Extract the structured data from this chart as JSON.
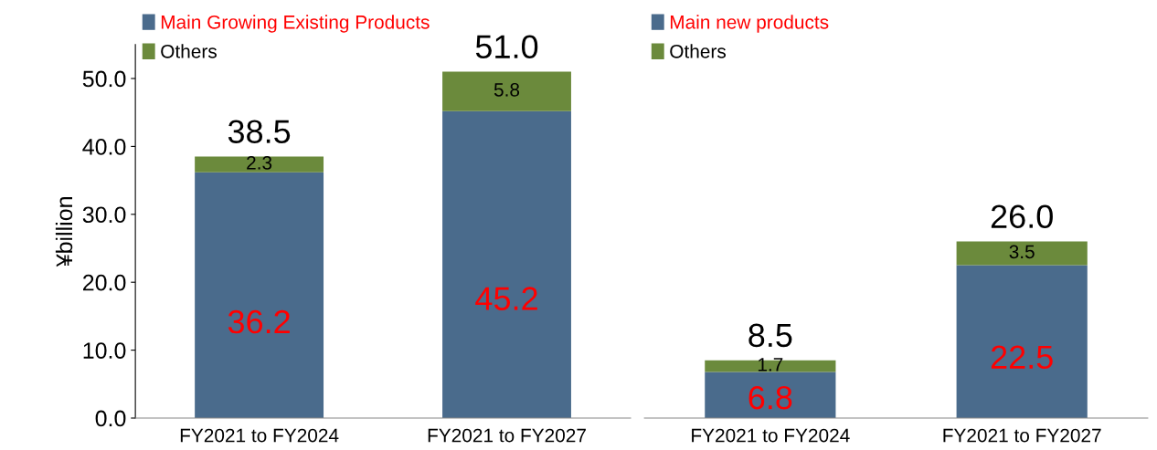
{
  "chart_data": [
    {
      "type": "bar",
      "stacked": true,
      "ylabel": "¥billion",
      "categories": [
        "FY2021 to FY2024",
        "FY2021 to FY2027"
      ],
      "series": [
        {
          "name": "Main Growing Existing Products",
          "color": "#4a6b8c",
          "values": [
            36.2,
            45.2
          ]
        },
        {
          "name": "Others",
          "color": "#6b8a3c",
          "values": [
            2.3,
            5.8
          ]
        }
      ],
      "data_labels": true,
      "totals": [
        "38.5",
        "51.0"
      ],
      "ylim": [
        0,
        55
      ],
      "yticks": [
        {
          "value": 0,
          "label": "0.0"
        },
        {
          "value": 10,
          "label": "10.0"
        },
        {
          "value": 20,
          "label": "20.0"
        },
        {
          "value": 30,
          "label": "30.0"
        },
        {
          "value": 40,
          "label": "40.0"
        },
        {
          "value": 50,
          "label": "50.0"
        }
      ],
      "legend": "top left"
    },
    {
      "type": "bar",
      "stacked": true,
      "categories": [
        "FY2021 to FY2024",
        "FY2021 to FY2027"
      ],
      "series": [
        {
          "name": "Main new products",
          "color": "#4a6b8c",
          "values": [
            6.8,
            22.5
          ]
        },
        {
          "name": "Others",
          "color": "#6b8a3c",
          "values": [
            1.7,
            3.5
          ]
        }
      ],
      "data_labels": true,
      "totals": [
        "8.5",
        "26.0"
      ],
      "tick_labels": "x",
      "legend": "top left"
    }
  ]
}
